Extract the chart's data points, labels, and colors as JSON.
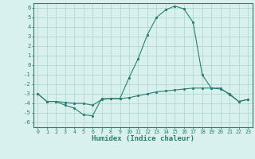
{
  "xlabel": "Humidex (Indice chaleur)",
  "x": [
    0,
    1,
    2,
    3,
    4,
    5,
    6,
    7,
    8,
    9,
    10,
    11,
    12,
    13,
    14,
    15,
    16,
    17,
    18,
    19,
    20,
    21,
    22,
    23
  ],
  "line1": [
    -3.0,
    -3.8,
    -3.8,
    -4.2,
    -4.5,
    -5.2,
    -5.3,
    -3.5,
    -3.5,
    -3.5,
    -1.3,
    0.7,
    3.2,
    5.0,
    5.8,
    6.2,
    5.9,
    4.5,
    -1.0,
    -2.4,
    -2.5,
    -3.0,
    -3.8,
    -3.6
  ],
  "line2": [
    -3.0,
    -3.8,
    -3.8,
    -3.9,
    -4.0,
    -4.0,
    -4.2,
    -3.6,
    -3.5,
    -3.5,
    -3.4,
    -3.2,
    -3.0,
    -2.8,
    -2.7,
    -2.6,
    -2.5,
    -2.4,
    -2.4,
    -2.4,
    -2.4,
    -3.1,
    -3.8,
    -3.6
  ],
  "line_color": "#2E7D6E",
  "bg_color": "#d8f0ee",
  "grid_color": "#b0d8d4",
  "ylim": [
    -6.5,
    6.5
  ],
  "xlim": [
    -0.5,
    23.5
  ],
  "yticks": [
    -6,
    -5,
    -4,
    -3,
    -2,
    -1,
    0,
    1,
    2,
    3,
    4,
    5,
    6
  ],
  "xticks": [
    0,
    1,
    2,
    3,
    4,
    5,
    6,
    7,
    8,
    9,
    10,
    11,
    12,
    13,
    14,
    15,
    16,
    17,
    18,
    19,
    20,
    21,
    22,
    23
  ]
}
